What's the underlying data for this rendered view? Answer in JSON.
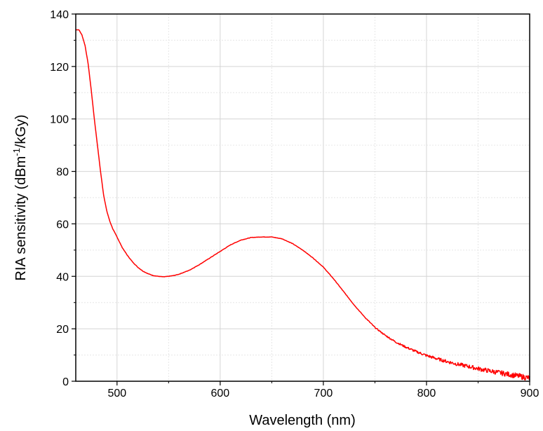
{
  "chart_data": {
    "type": "line",
    "xlabel": "Wavelength (nm)",
    "ylabel_main": "RIA sensitivity (dBm",
    "ylabel_sup": "-1",
    "ylabel_tail": "/kGy)",
    "xlim": [
      460,
      900
    ],
    "ylim": [
      0,
      140
    ],
    "x_ticks": [
      500,
      600,
      700,
      800,
      900
    ],
    "y_ticks": [
      0,
      20,
      40,
      60,
      80,
      100,
      120,
      140
    ],
    "grid": true,
    "line_color": "#ff0000",
    "series": [
      {
        "x": [
          460,
          463,
          466,
          469,
          472,
          475,
          478,
          481,
          484,
          487,
          490,
          493,
          496,
          500,
          505,
          510,
          515,
          520,
          525,
          530,
          535,
          540,
          545,
          550,
          555,
          560,
          570,
          580,
          590,
          600,
          610,
          620,
          630,
          640,
          650,
          660,
          670,
          680,
          690,
          700,
          710,
          720,
          730,
          740,
          750,
          760,
          770,
          780,
          790,
          800,
          810,
          820,
          830,
          840,
          850,
          860,
          870,
          880,
          890,
          900
        ],
        "y": [
          134,
          134,
          132,
          128,
          121,
          111,
          100,
          90,
          80,
          71,
          65,
          61,
          58,
          55,
          51,
          48,
          45.5,
          43.5,
          42,
          41,
          40.3,
          40,
          39.8,
          40,
          40.3,
          40.8,
          42.3,
          44.5,
          47,
          49.5,
          52,
          53.8,
          54.8,
          55,
          55,
          54.3,
          52.5,
          50,
          47,
          43.5,
          39,
          34,
          29,
          24.5,
          20.5,
          17.5,
          15,
          13,
          11.3,
          9.8,
          8.6,
          7.5,
          6.5,
          5.7,
          4.8,
          4,
          3.3,
          2.6,
          1.9,
          1.2
        ]
      }
    ]
  }
}
